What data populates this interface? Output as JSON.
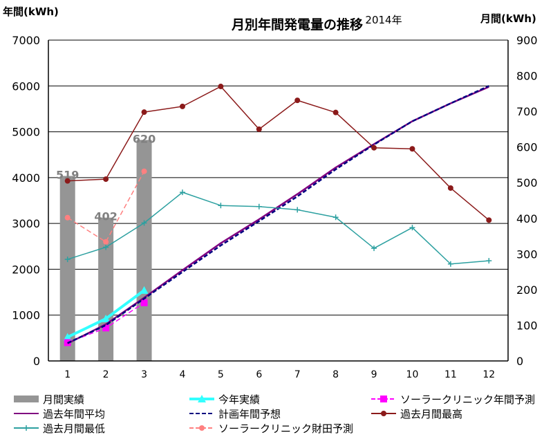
{
  "chart_data": {
    "type": "bar",
    "title": "月別年間発電量の推移",
    "subtitle": "2014年",
    "y_left_label": "年間(kWh)",
    "y_right_label": "月間(kWh)",
    "y_left_range": [
      0,
      7000
    ],
    "y_right_range": [
      0,
      900
    ],
    "y_left_ticks": [
      "0",
      "1000",
      "2000",
      "3000",
      "4000",
      "5000",
      "6000",
      "7000"
    ],
    "y_right_ticks": [
      "0",
      "100",
      "200",
      "300",
      "400",
      "500",
      "600",
      "700",
      "800",
      "900"
    ],
    "categories": [
      "1",
      "2",
      "3",
      "4",
      "5",
      "6",
      "7",
      "8",
      "9",
      "10",
      "11",
      "12"
    ],
    "grid": "horizontal",
    "legend_position": "bottom",
    "series": [
      {
        "name": "月間実績",
        "type": "bar",
        "axis": "right",
        "color": "#959595",
        "x": [
          1,
          2,
          3
        ],
        "values": [
          519,
          402,
          620
        ],
        "data_labels": [
          "519",
          "402",
          "620"
        ]
      },
      {
        "name": "今年実績",
        "type": "line",
        "axis": "left",
        "color": "#33ffff",
        "marker": "triangle",
        "x": [
          1,
          2,
          3
        ],
        "values": [
          519,
          921,
          1541
        ]
      },
      {
        "name": "ソーラークリニック年間予測",
        "type": "line",
        "axis": "left",
        "color": "#ff00ff",
        "marker": "square",
        "dash": true,
        "x": [
          1,
          2,
          3
        ],
        "values": [
          400,
          720,
          1270
        ]
      },
      {
        "name": "過去年間平均",
        "type": "line",
        "axis": "left",
        "color": "#800080",
        "marker": "none",
        "x": [
          1,
          2,
          3,
          4,
          5,
          6,
          7,
          8,
          9,
          10,
          11,
          12
        ],
        "values": [
          380,
          800,
          1380,
          1980,
          2570,
          3090,
          3640,
          4220,
          4730,
          5230,
          5620,
          5980
        ]
      },
      {
        "name": "計画年間予想",
        "type": "line",
        "axis": "left",
        "color": "#000080",
        "marker": "none",
        "dash": true,
        "x": [
          1,
          2,
          3,
          4,
          5,
          6,
          7,
          8,
          9,
          10,
          11,
          12
        ],
        "values": [
          390,
          780,
          1360,
          1940,
          2520,
          3050,
          3590,
          4180,
          4720,
          5230,
          5620,
          6000
        ]
      },
      {
        "name": "過去月間最高",
        "type": "line",
        "axis": "right",
        "color": "#8b1a1a",
        "marker": "circle",
        "x": [
          1,
          2,
          3,
          4,
          5,
          6,
          7,
          8,
          9,
          10,
          11,
          12
        ],
        "values": [
          505,
          510,
          698,
          714,
          770,
          650,
          731,
          697,
          598,
          595,
          485,
          395
        ]
      },
      {
        "name": "過去月間最低",
        "type": "line",
        "axis": "right",
        "color": "#2ca0a0",
        "marker": "plus",
        "x": [
          1,
          2,
          3,
          4,
          5,
          6,
          7,
          8,
          9,
          10,
          11,
          12
        ],
        "values": [
          285,
          319,
          387,
          473,
          436,
          433,
          424,
          403,
          316,
          374,
          272,
          281
        ]
      },
      {
        "name": "ソーラークリニック財田予測",
        "type": "line",
        "axis": "right",
        "color": "#ff8080",
        "marker": "circle",
        "dash": true,
        "x": [
          1,
          2,
          3
        ],
        "values": [
          402,
          334,
          532
        ]
      }
    ]
  }
}
